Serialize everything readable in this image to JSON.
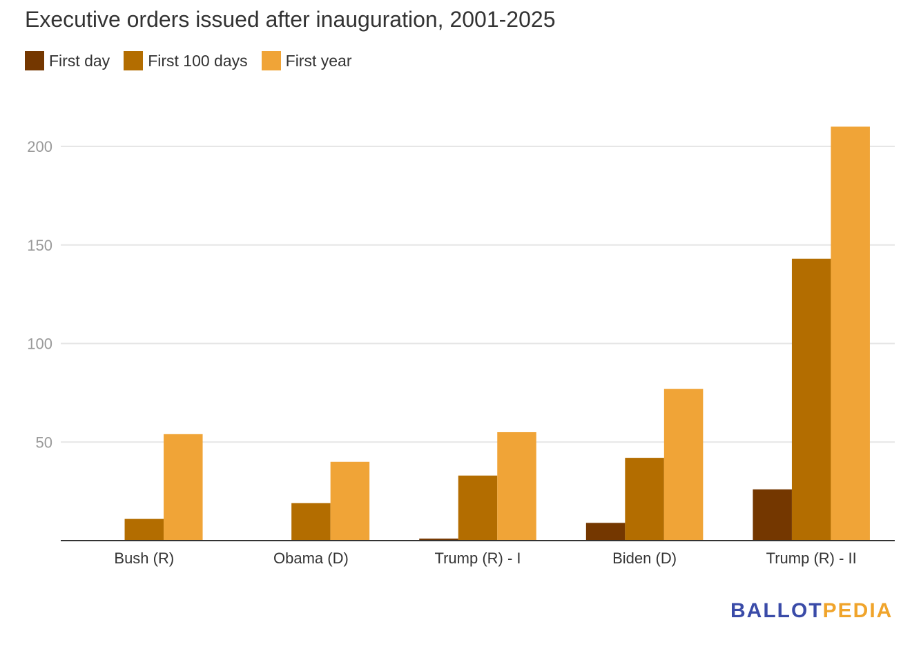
{
  "chart_data": {
    "type": "bar",
    "title": "Executive orders issued after inauguration, 2001-2025",
    "categories": [
      "Bush (R)",
      "Obama (D)",
      "Trump (R) - I",
      "Biden (D)",
      "Trump (R) - II"
    ],
    "series": [
      {
        "name": "First day",
        "color": "#743700",
        "values": [
          0,
          0,
          1,
          9,
          26
        ]
      },
      {
        "name": "First 100 days",
        "color": "#b36d00",
        "values": [
          11,
          19,
          33,
          42,
          143
        ]
      },
      {
        "name": "First year",
        "color": "#f0a437",
        "values": [
          54,
          40,
          55,
          77,
          210
        ]
      }
    ],
    "ylim": [
      0,
      200
    ],
    "yticks": [
      50,
      100,
      150,
      200
    ],
    "grid": true,
    "legend": "top-left",
    "xlabel": "",
    "ylabel": ""
  },
  "logo": {
    "part1": "BALLOT",
    "part2": "PEDIA",
    "color1": "#3a4ba8",
    "color2": "#f0a42b"
  }
}
